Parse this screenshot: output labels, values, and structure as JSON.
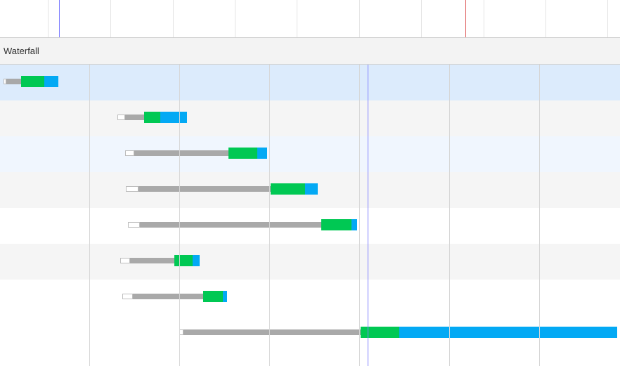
{
  "header": {
    "title": "Waterfall"
  },
  "colors": {
    "queue": "#ffffff",
    "wait": "#a9a9a9",
    "connect": "#00c853",
    "download": "#03a9f4",
    "selected_row": "#dcebfc",
    "dom_content_loaded_marker": "#8080ff",
    "load_marker": "#e06666"
  },
  "rows": [
    {
      "start": 0.0,
      "wait_start": 0.5,
      "connect_start": 2.9,
      "download_start": 6.8,
      "end": 9.2
    },
    {
      "start": 19.0,
      "wait_start": 20.3,
      "connect_start": 23.5,
      "download_start": 26.2,
      "end": 30.7
    },
    {
      "start": 20.3,
      "wait_start": 21.9,
      "connect_start": 37.6,
      "download_start": 42.4,
      "end": 44.0
    },
    {
      "start": 20.5,
      "wait_start": 22.5,
      "connect_start": 44.6,
      "download_start": 50.4,
      "end": 52.5
    },
    {
      "start": 20.8,
      "wait_start": 22.8,
      "connect_start": 53.1,
      "download_start": 58.1,
      "end": 59.1
    },
    {
      "start": 19.5,
      "wait_start": 21.1,
      "connect_start": 28.6,
      "download_start": 31.6,
      "end": 32.8
    },
    {
      "start": 19.8,
      "wait_start": 21.6,
      "connect_start": 33.4,
      "download_start": 36.6,
      "end": 37.4
    },
    {
      "start": 29.4,
      "wait_start": 30.1,
      "connect_start": 59.7,
      "download_start": 66.2,
      "end": 102.6
    }
  ],
  "selected_row": 0,
  "markers": {
    "dom_content_loaded": 60.9,
    "load": 77.1
  },
  "scale": {
    "max": 102.8
  }
}
